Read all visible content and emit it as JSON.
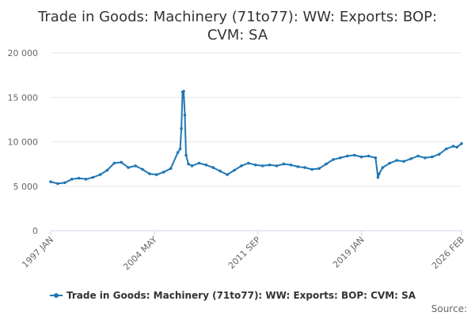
{
  "chart_data": {
    "type": "line",
    "title_lines": [
      "Trade in Goods: Machinery (71to77): WW: Exports: BOP:",
      "CVM: SA"
    ],
    "xlabel": "",
    "ylabel": "",
    "ylim": [
      0,
      20000
    ],
    "yticks": [
      0,
      5000,
      10000,
      15000,
      20000
    ],
    "ytick_labels": [
      "0",
      "5 000",
      "10 000",
      "15 000",
      "20 000"
    ],
    "xlim": [
      "1997-01",
      "2026-02"
    ],
    "xticks": [
      "1997-01",
      "2004-05",
      "2011-09",
      "2019-01",
      "2026-02"
    ],
    "xtick_labels": [
      "1997 JAN",
      "2004 MAY",
      "2011 SEP",
      "2019 JAN",
      "2026 FEB"
    ],
    "grid": "horizontal",
    "legend_position": "bottom",
    "series": [
      {
        "name": "Trade in Goods: Machinery (71to77): WW: Exports: BOP: CVM: SA",
        "color": "#1f77b4",
        "x": [
          "1997-01",
          "1997-07",
          "1998-01",
          "1998-07",
          "1999-01",
          "1999-07",
          "2000-01",
          "2000-07",
          "2001-01",
          "2001-07",
          "2002-01",
          "2002-07",
          "2003-01",
          "2003-07",
          "2004-01",
          "2004-07",
          "2005-01",
          "2005-07",
          "2006-01",
          "2006-03",
          "2006-04",
          "2006-05",
          "2006-06",
          "2006-07",
          "2006-08",
          "2006-10",
          "2007-01",
          "2007-07",
          "2008-01",
          "2008-07",
          "2009-01",
          "2009-07",
          "2010-01",
          "2010-07",
          "2011-01",
          "2011-07",
          "2012-01",
          "2012-07",
          "2013-01",
          "2013-07",
          "2014-01",
          "2014-07",
          "2015-01",
          "2015-07",
          "2016-01",
          "2016-07",
          "2017-01",
          "2017-07",
          "2018-01",
          "2018-07",
          "2019-01",
          "2019-07",
          "2020-01",
          "2020-03",
          "2020-04",
          "2020-07",
          "2021-01",
          "2021-07",
          "2022-01",
          "2022-07",
          "2023-01",
          "2023-07",
          "2024-01",
          "2024-07",
          "2025-01",
          "2025-07",
          "2025-10",
          "2026-02"
        ],
        "values": [
          5500,
          5300,
          5400,
          5800,
          5900,
          5800,
          6000,
          6300,
          6800,
          7600,
          7700,
          7100,
          7300,
          6900,
          6400,
          6300,
          6600,
          7000,
          8800,
          9200,
          11500,
          15600,
          15700,
          13000,
          8500,
          7500,
          7300,
          7600,
          7400,
          7100,
          6700,
          6300,
          6800,
          7300,
          7600,
          7400,
          7300,
          7400,
          7300,
          7500,
          7400,
          7200,
          7100,
          6900,
          7000,
          7500,
          8000,
          8200,
          8400,
          8500,
          8300,
          8400,
          8200,
          6000,
          6400,
          7100,
          7600,
          7900,
          7800,
          8100,
          8400,
          8200,
          8300,
          8600,
          9200,
          9500,
          9400,
          9800
        ]
      }
    ]
  },
  "legend": {
    "label": "Trade in Goods: Machinery (71to77): WW: Exports: BOP: CVM: SA"
  },
  "footer": {
    "source_label": "Source:"
  }
}
